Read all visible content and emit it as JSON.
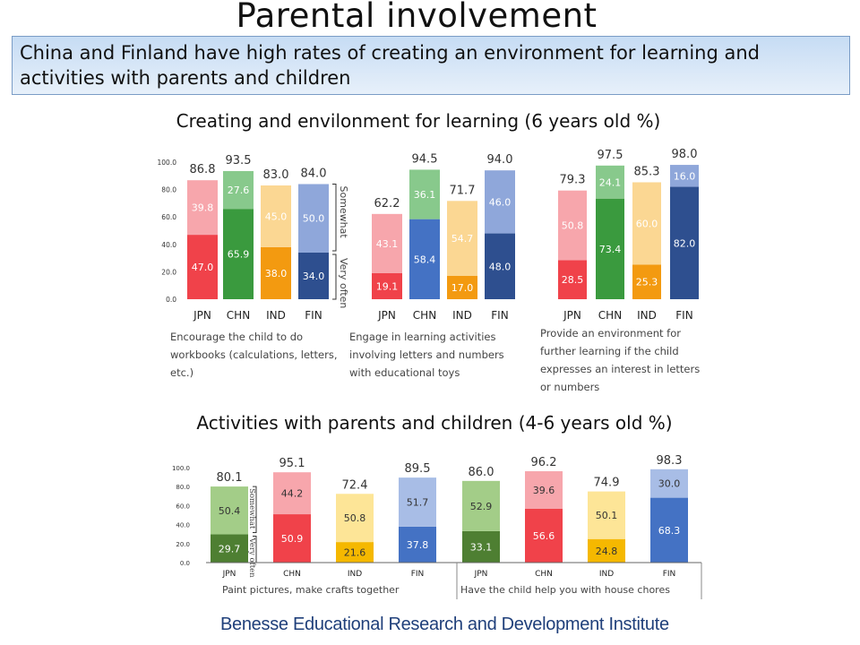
{
  "title": "Parental  involvement",
  "banner": "China and Finland have high rates of creating an environment for learning and activities with parents and children",
  "section1_title": "Creating and envilonment for learning (6 years old %)",
  "section2_title": "Activities with parents and children (4-6 years old %)",
  "footer": "Benesse Educational Research and Development Institute",
  "chart_data": [
    {
      "type": "bar",
      "stacked": true,
      "categories": [
        "JPN",
        "CHN",
        "IND",
        "FIN"
      ],
      "caption": "Encourage the child to do workbooks (calculations, letters, etc.)",
      "totals": [
        "86.8",
        "93.5",
        "83.0",
        "84.0"
      ],
      "series": [
        {
          "name": "Very often",
          "values": [
            47.0,
            65.9,
            38.0,
            34.0
          ],
          "labels": [
            "47.0",
            "65.9",
            "38.0",
            "34.0"
          ]
        },
        {
          "name": "Somewhat",
          "values": [
            39.8,
            27.6,
            45.0,
            50.0
          ],
          "labels": [
            "39.8",
            "27.6",
            "45.0",
            "50.0"
          ]
        }
      ],
      "yticks": [
        "100.0",
        "80.0",
        "60.0",
        "40.0",
        "20.0",
        "0.0"
      ],
      "ylim": [
        0,
        100
      ],
      "legend": {
        "somewhat": "Somewhat",
        "very_often": "Very often"
      },
      "colors": {
        "bottom": [
          "#f0424a",
          "#3a9a3e",
          "#f39a10",
          "#2e4f8f"
        ],
        "top": [
          "#f7a6ac",
          "#88c98c",
          "#fbd793",
          "#8fa7da"
        ]
      }
    },
    {
      "type": "bar",
      "stacked": true,
      "categories": [
        "JPN",
        "CHN",
        "IND",
        "FIN"
      ],
      "caption": "Engage in learning activities involving letters and numbers with educational toys",
      "totals": [
        "62.2",
        "94.5",
        "71.7",
        "94.0"
      ],
      "series": [
        {
          "name": "Very often",
          "values": [
            19.1,
            58.4,
            17.0,
            48.0
          ],
          "labels": [
            "19.1",
            "58.4",
            "17.0",
            "48.0"
          ]
        },
        {
          "name": "Somewhat",
          "values": [
            43.1,
            36.1,
            54.7,
            46.0
          ],
          "labels": [
            "43.1",
            "36.1",
            "54.7",
            "46.0"
          ]
        }
      ],
      "ylim": [
        0,
        100
      ],
      "colors": {
        "bottom": [
          "#f0424a",
          "#4472c4",
          "#f39a10",
          "#2e4f8f"
        ],
        "top": [
          "#f7a6ac",
          "#88c98c",
          "#fbd793",
          "#8fa7da"
        ]
      }
    },
    {
      "type": "bar",
      "stacked": true,
      "categories": [
        "JPN",
        "CHN",
        "IND",
        "FIN"
      ],
      "caption": "Provide an environment for further learning if the child expresses an interest in letters or numbers",
      "totals": [
        "79.3",
        "97.5",
        "85.3",
        "98.0"
      ],
      "series": [
        {
          "name": "Very often",
          "values": [
            28.5,
            73.4,
            25.3,
            82.0
          ],
          "labels": [
            "28.5",
            "73.4",
            "25.3",
            "82.0"
          ]
        },
        {
          "name": "Somewhat",
          "values": [
            50.8,
            24.1,
            60.0,
            16.0
          ],
          "labels": [
            "50.8",
            "24.1",
            "60.0",
            "16.0"
          ]
        }
      ],
      "ylim": [
        0,
        100
      ],
      "colors": {
        "bottom": [
          "#f0424a",
          "#3a9a3e",
          "#f39a10",
          "#2e4f8f"
        ],
        "top": [
          "#f7a6ac",
          "#88c98c",
          "#fbd793",
          "#8fa7da"
        ]
      }
    },
    {
      "type": "bar",
      "stacked": true,
      "categories": [
        "JPN",
        "CHN",
        "IND",
        "FIN"
      ],
      "caption": "Paint pictures, make crafts together",
      "totals": [
        "80.1",
        "95.1",
        "72.4",
        "89.5"
      ],
      "series": [
        {
          "name": "Very often",
          "values": [
            29.7,
            50.9,
            21.6,
            37.8
          ],
          "labels": [
            "29.7",
            "50.9",
            "21.6",
            "37.8"
          ]
        },
        {
          "name": "Somewhat",
          "values": [
            50.4,
            44.2,
            50.8,
            51.7
          ],
          "labels": [
            "50.4",
            "44.2",
            "50.8",
            "51.7"
          ]
        }
      ],
      "yticks": [
        "100.0",
        "80.0",
        "60.0",
        "40.0",
        "20.0",
        "0.0"
      ],
      "ylim": [
        0,
        100
      ],
      "legend": {
        "somewhat": "Somewhat",
        "very_often": "Very often"
      },
      "colors": {
        "bottom": [
          "#4e7f32",
          "#f0424a",
          "#f5b800",
          "#4472c4"
        ],
        "top": [
          "#a3cd88",
          "#f7a6ac",
          "#fde597",
          "#a8bde6"
        ]
      }
    },
    {
      "type": "bar",
      "stacked": true,
      "categories": [
        "JPN",
        "CHN",
        "IND",
        "FIN"
      ],
      "caption": "Have the child help you with house chores",
      "totals": [
        "86.0",
        "96.2",
        "74.9",
        "98.3"
      ],
      "series": [
        {
          "name": "Very often",
          "values": [
            33.1,
            56.6,
            24.8,
            68.3
          ],
          "labels": [
            "33.1",
            "56.6",
            "24.8",
            "68.3"
          ]
        },
        {
          "name": "Somewhat",
          "values": [
            52.9,
            39.6,
            50.1,
            30.0
          ],
          "labels": [
            "52.9",
            "39.6",
            "50.1",
            "30.0"
          ]
        }
      ],
      "ylim": [
        0,
        100
      ],
      "colors": {
        "bottom": [
          "#4e7f32",
          "#f0424a",
          "#f5b800",
          "#4472c4"
        ],
        "top": [
          "#a3cd88",
          "#f7a6ac",
          "#fde597",
          "#a8bde6"
        ]
      }
    }
  ]
}
